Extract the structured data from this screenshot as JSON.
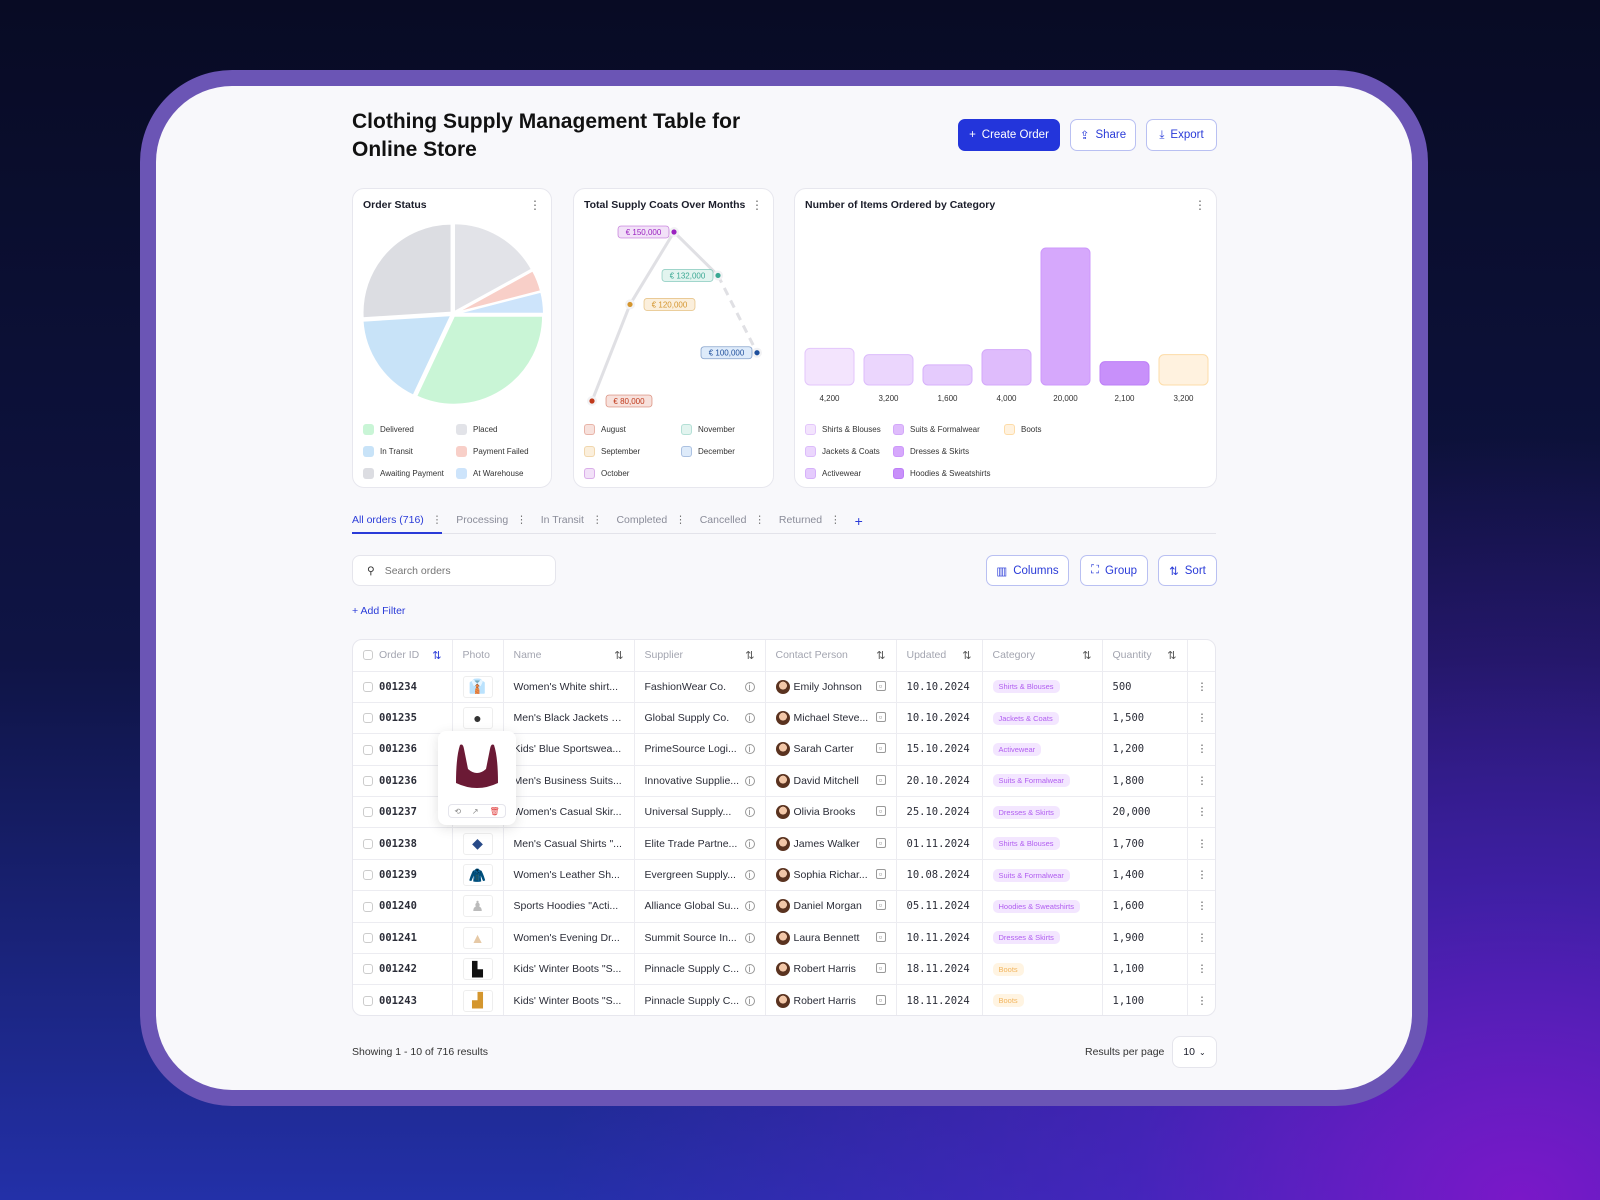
{
  "header": {
    "title": "Clothing Supply Management Table for Online Store",
    "create_label": "Create Order",
    "share_label": "Share",
    "export_label": "Export"
  },
  "order_status": {
    "title": "Order Status",
    "chart_data": {
      "type": "pie",
      "title": "Order Status",
      "legend_position": "bottom",
      "slices": [
        {
          "name": "Delivered",
          "value": 32,
          "color": "#c9f5d6"
        },
        {
          "name": "In Transit",
          "value": 17,
          "color": "#c8e3f8"
        },
        {
          "name": "Awaiting Payment",
          "value": 26,
          "color": "#dcdde2"
        },
        {
          "name": "Placed",
          "value": 17,
          "color": "#e2e3e8"
        },
        {
          "name": "Payment Failed",
          "value": 4,
          "color": "#f8cfc8"
        },
        {
          "name": "At Warehouse",
          "value": 4,
          "color": "#cde4fb"
        }
      ]
    }
  },
  "supply_costs": {
    "title": "Total Supply Coats Over Months",
    "chart_data": {
      "type": "line",
      "title": "Total Supply Coats Over Months",
      "legend_position": "bottom",
      "categories": [
        "August",
        "September",
        "October",
        "November",
        "December"
      ],
      "values": [
        80000,
        120000,
        150000,
        132000,
        100000
      ],
      "labels": [
        "€ 80,000",
        "€ 120,000",
        "€ 150,000",
        "€ 132,000",
        "€ 100,000"
      ],
      "colors": [
        "#c0391b",
        "#d4952e",
        "#9b22c0",
        "#3aa893",
        "#1e4f9c"
      ],
      "legend_colors": [
        "#f7e1dc",
        "#fbefdc",
        "#f2e1f8",
        "#e2f4ef",
        "#deebfa"
      ]
    }
  },
  "items_by_category": {
    "title": "Number of Items Ordered by Category",
    "chart_data": {
      "type": "bar",
      "title": "Number of Items Ordered by Category",
      "legend_position": "bottom",
      "categories": [
        "Shirts & Blouses",
        "Jackets & Coats",
        "Activewear",
        "Suits & Formalwear",
        "Dresses & Skirts",
        "Hoodies & Sweatshirts",
        "Boots"
      ],
      "values": [
        4200,
        3200,
        1600,
        4000,
        20000,
        2100,
        3200
      ],
      "labels": [
        "4,200",
        "3,200",
        "1,600",
        "4,000",
        "20,000",
        "2,100",
        "3,200"
      ],
      "colors": [
        "#f3e4fd",
        "#ebd6fd",
        "#e5cbfd",
        "#dfbcfc",
        "#d6a8fc",
        "#c890fa",
        "#fff2df"
      ],
      "borders": [
        "#e3c6fb",
        "#dcbcfb",
        "#d6b1fa",
        "#d3a8fa",
        "#cd98fb",
        "#bd7ff7",
        "#fddca8"
      ]
    }
  },
  "tabs": [
    {
      "label": "All orders",
      "count": "(716)"
    },
    {
      "label": "Processing"
    },
    {
      "label": "In Transit"
    },
    {
      "label": "Completed"
    },
    {
      "label": "Cancelled"
    },
    {
      "label": "Returned"
    }
  ],
  "toolbar": {
    "search_placeholder": "Search orders",
    "columns_label": "Columns",
    "group_label": "Group",
    "sort_label": "Sort",
    "add_filter_label": "Add Filter"
  },
  "table": {
    "columns": [
      "Order ID",
      "Photo",
      "Name",
      "Supplier",
      "Contact Person",
      "Updated",
      "Category",
      "Quantity"
    ],
    "rows": [
      {
        "id": "001234",
        "photo": "blue-shirt",
        "name": "Women's White shirt...",
        "supplier": "FashionWear Co.",
        "contact": "Emily Johnson",
        "updated": "10.10.2024",
        "category": "Shirts & Blouses",
        "qty": "500"
      },
      {
        "id": "001235",
        "photo": "black-jacket",
        "name": "Men's Black Jackets \"...",
        "supplier": "Global Supply Co.",
        "contact": "Michael Steve...",
        "updated": "10.10.2024",
        "category": "Jackets & Coats",
        "qty": "1,500"
      },
      {
        "id": "001236",
        "photo": "sports-bra",
        "name": "Kids' Blue Sportswea...",
        "supplier": "PrimeSource Logi...",
        "contact": "Sarah Carter",
        "updated": "15.10.2024",
        "category": "Activewear",
        "qty": "1,200"
      },
      {
        "id": "001236",
        "photo": "suit",
        "name": "Men's Business Suits...",
        "supplier": "Innovative Supplie...",
        "contact": "David Mitchell",
        "updated": "20.10.2024",
        "category": "Suits & Formalwear",
        "qty": "1,800"
      },
      {
        "id": "001237",
        "photo": "skirt",
        "name": "Women's Casual Skir...",
        "supplier": "Universal Supply...",
        "contact": "Olivia Brooks",
        "updated": "25.10.2024",
        "category": "Dresses & Skirts",
        "qty": "20,000"
      },
      {
        "id": "001238",
        "photo": "denim-shirt",
        "name": "Men's Casual Shirts \"...",
        "supplier": "Elite Trade Partne...",
        "contact": "James Walker",
        "updated": "01.11.2024",
        "category": "Shirts & Blouses",
        "qty": "1,700"
      },
      {
        "id": "001239",
        "photo": "leather-jacket",
        "name": "Women's Leather Sh...",
        "supplier": "Evergreen Supply...",
        "contact": "Sophia Richar...",
        "updated": "10.08.2024",
        "category": "Suits & Formalwear",
        "qty": "1,400"
      },
      {
        "id": "001240",
        "photo": "hoodie",
        "name": "Sports Hoodies \"Acti...",
        "supplier": "Alliance Global Su...",
        "contact": "Daniel Morgan",
        "updated": "05.11.2024",
        "category": "Hoodies & Sweatshirts",
        "qty": "1,600"
      },
      {
        "id": "001241",
        "photo": "evening-dress",
        "name": "Women's Evening Dr...",
        "supplier": "Summit Source In...",
        "contact": "Laura Bennett",
        "updated": "10.11.2024",
        "category": "Dresses & Skirts",
        "qty": "1,900"
      },
      {
        "id": "001242",
        "photo": "black-boots",
        "name": "Kids' Winter Boots \"S...",
        "supplier": "Pinnacle Supply C...",
        "contact": "Robert Harris",
        "updated": "18.11.2024",
        "category": "Boots",
        "qty": "1,100"
      },
      {
        "id": "001243",
        "photo": "tan-boots",
        "name": "Kids' Winter Boots \"S...",
        "supplier": "Pinnacle Supply C...",
        "contact": "Robert Harris",
        "updated": "18.11.2024",
        "category": "Boots",
        "qty": "1,100"
      }
    ]
  },
  "footer": {
    "showing": "Showing 1 - 10 of 716 results",
    "per_page_label": "Results per page",
    "per_page_value": "10"
  }
}
